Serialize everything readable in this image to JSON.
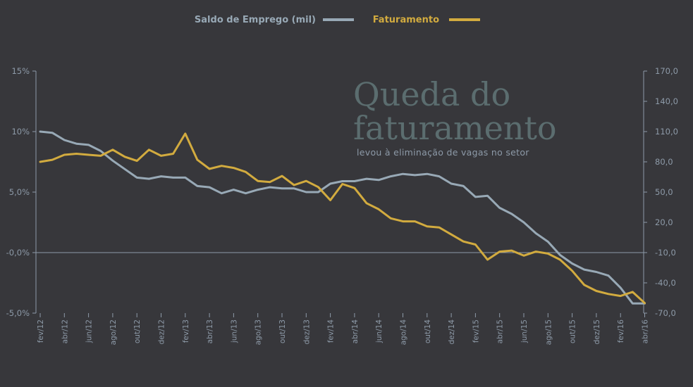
{
  "chart_data": {
    "type": "line",
    "title_lines": [
      "Queda do",
      "faturamento"
    ],
    "subtitle": "levou à eliminação de vagas no setor",
    "legend": {
      "placement": "top"
    },
    "x_tick_labels": [
      "fev/12",
      "abr/12",
      "jun/12",
      "ago/12",
      "out/12",
      "dez/12",
      "fev/13",
      "abr/13",
      "jun/13",
      "ago/13",
      "out/13",
      "dez/13",
      "fev/14",
      "abr/14",
      "jun/14",
      "ago/14",
      "out/14",
      "dez/14",
      "fev/15",
      "abr/15",
      "jun/15",
      "ago/15",
      "out/15",
      "dez/15",
      "fev/16",
      "abr/16"
    ],
    "y_left": {
      "ticks": [
        "15%",
        "10%",
        "5,0%",
        "-0,0%",
        "-5,0%"
      ],
      "range": [
        -5,
        15
      ]
    },
    "y_right": {
      "ticks": [
        "170,0",
        "140,0",
        "110,0",
        "80,0",
        "50,0",
        "20,0",
        "-10,0",
        "-40,0",
        "-70,0"
      ],
      "range": [
        -70,
        170
      ]
    },
    "series": [
      {
        "name": "Saldo de Emprego (mil)",
        "axis": "left",
        "color": "#98a9b6",
        "values": [
          10.0,
          9.9,
          9.3,
          9.0,
          8.9,
          8.4,
          7.6,
          6.9,
          6.2,
          6.1,
          6.3,
          6.2,
          6.2,
          5.5,
          5.4,
          4.9,
          5.2,
          4.9,
          5.2,
          5.4,
          5.3,
          5.3,
          5.0,
          5.0,
          5.7,
          5.9,
          5.9,
          6.1,
          6.0,
          6.3,
          6.5,
          6.4,
          6.5,
          6.3,
          5.7,
          5.5,
          4.6,
          4.7,
          3.7,
          3.2,
          2.5,
          1.6,
          0.9,
          -0.2,
          -0.9,
          -1.4,
          -1.6,
          -1.9,
          -2.9,
          -4.2,
          -4.2
        ]
      },
      {
        "name": "Faturamento",
        "axis": "right",
        "color": "#d2ab3f",
        "values": [
          80,
          82,
          87,
          88,
          87,
          86,
          92,
          85,
          81,
          92,
          86,
          88,
          108,
          82,
          73,
          76,
          74,
          70,
          61,
          60,
          66,
          57,
          61,
          55,
          42,
          58,
          54,
          39,
          33,
          24,
          21,
          21,
          16,
          15,
          8,
          1,
          -2,
          -17,
          -9,
          -8,
          -13,
          -9,
          -11,
          -17,
          -28,
          -42,
          -48,
          -51,
          -53,
          -49,
          -60
        ]
      }
    ]
  }
}
